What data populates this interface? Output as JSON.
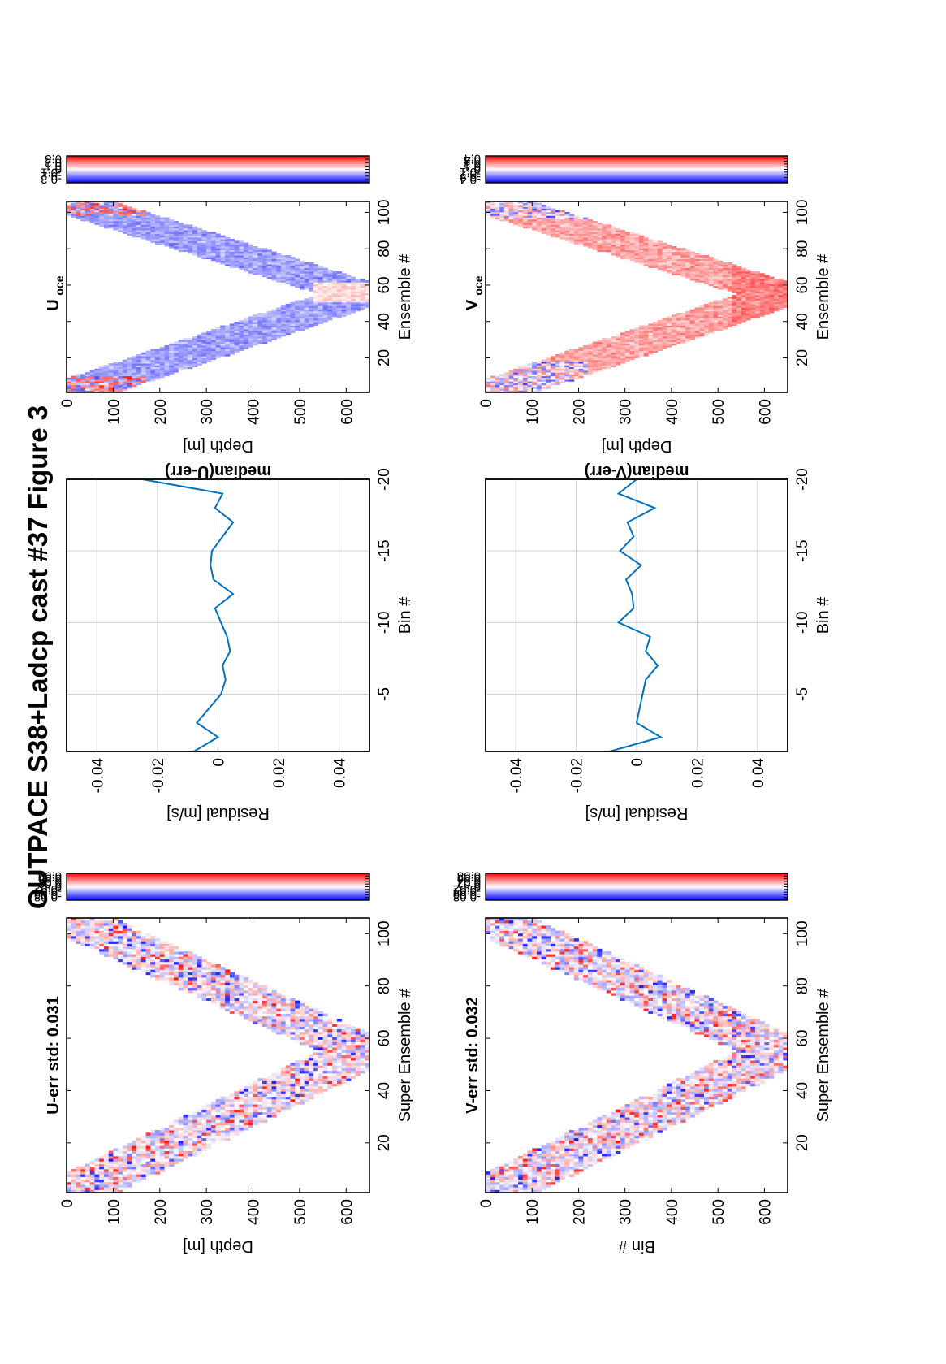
{
  "figure": {
    "title": "OUTPACE S38+Ladcp cast #37  Figure 3"
  },
  "colors": {
    "line": "#0072bd",
    "grid": "#d0d0d0",
    "frame": "#000000",
    "cmap_neg": "#0000ff",
    "cmap_zero": "#ffffff",
    "cmap_pos": "#ff0000"
  },
  "chart_data": [
    {
      "id": "u_err",
      "type": "heatmap",
      "title": "U-err std: 0.031",
      "xlabel": "Super Ensemble #",
      "ylabel": "Depth [m]",
      "xlim": [
        1,
        106
      ],
      "ylim": [
        0,
        650
      ],
      "xticks": [
        20,
        40,
        60,
        80,
        100
      ],
      "yticks": [
        0,
        100,
        200,
        300,
        400,
        500,
        600
      ],
      "pattern": "V-shaped down/up cast, bottom near ensemble 55 at ~640 m",
      "colorbar": {
        "ticks": [
          "0.08",
          "0.06",
          "0.04",
          "0.02",
          "0",
          "-0.02",
          "-0.04",
          "-0.06",
          "-0.08"
        ],
        "range": [
          -0.1,
          0.1
        ]
      },
      "seed": 11,
      "amp": 0.06
    },
    {
      "id": "u_median",
      "type": "line",
      "title": "median(U-err)",
      "xlabel": "Residual [m/s]",
      "ylabel": "Bin #",
      "xlim": [
        -0.05,
        0.05
      ],
      "ylim": [
        -20,
        -1
      ],
      "xticks": [
        "-0.04",
        "-0.02",
        "0",
        "0.02",
        "0.04"
      ],
      "yticks": [
        "-5",
        "-10",
        "-15",
        "-20"
      ],
      "grid": true,
      "series": [
        {
          "bins": [
            -1,
            -2,
            -3,
            -4,
            -5,
            -6,
            -7,
            -8,
            -9,
            -10,
            -11,
            -12,
            -13,
            -14,
            -15,
            -16,
            -17,
            -18,
            -19,
            -20
          ],
          "values": [
            -0.008,
            0.0,
            -0.007,
            -0.003,
            0.001,
            0.0025,
            0.0015,
            0.004,
            0.003,
            0.001,
            -0.001,
            0.005,
            -0.0015,
            -0.0025,
            -0.002,
            0.0015,
            0.005,
            -0.001,
            0.0015,
            -0.025
          ]
        }
      ]
    },
    {
      "id": "u_oce",
      "type": "heatmap",
      "title": "U",
      "title_sub": "oce",
      "xlabel": "Ensemble #",
      "ylabel": "Depth [m]",
      "xlim": [
        1,
        106
      ],
      "ylim": [
        0,
        650
      ],
      "xticks": [
        20,
        40,
        60,
        80,
        100
      ],
      "yticks": [
        0,
        100,
        200,
        300,
        400,
        500,
        600
      ],
      "pattern": "mostly blue (negative) with red near surface and red patch near bottom",
      "colorbar": {
        "ticks": [
          "0.3",
          "0.2",
          "0.1",
          "0",
          "-0.1",
          "-0.2",
          "-0.3"
        ],
        "range": [
          -0.4,
          0.4
        ]
      },
      "seed": 23,
      "amp": 0.05
    },
    {
      "id": "v_err",
      "type": "heatmap",
      "title": "V-err std: 0.032",
      "xlabel": "Super Ensemble #",
      "ylabel": "Bin #",
      "xlim": [
        1,
        106
      ],
      "ylim": [
        0,
        650
      ],
      "xticks": [
        20,
        40,
        60,
        80,
        100
      ],
      "yticks": [
        0,
        100,
        200,
        300,
        400,
        500,
        600
      ],
      "pattern": "V-shaped down/up cast, bottom near ensemble 55 at ~640",
      "colorbar": {
        "ticks": [
          "0.08",
          "0.06",
          "0.04",
          "0.02",
          "0",
          "-0.02",
          "-0.04",
          "-0.06",
          "-0.08"
        ],
        "range": [
          -0.1,
          0.1
        ]
      },
      "seed": 37,
      "amp": 0.06
    },
    {
      "id": "v_median",
      "type": "line",
      "title": "median(V-err)",
      "xlabel": "Residual [m/s]",
      "ylabel": "Bin #",
      "xlim": [
        -0.05,
        0.05
      ],
      "ylim": [
        -20,
        -1
      ],
      "xticks": [
        "-0.04",
        "-0.02",
        "0",
        "0.02",
        "0.04"
      ],
      "yticks": [
        "-5",
        "-10",
        "-15",
        "-20"
      ],
      "grid": true,
      "series": [
        {
          "bins": [
            -1,
            -2,
            -3,
            -4,
            -5,
            -6,
            -7,
            -8,
            -9,
            -10,
            -11,
            -12,
            -13,
            -14,
            -15,
            -16,
            -17,
            -18,
            -19,
            -20
          ],
          "values": [
            -0.009,
            0.008,
            0.0,
            0.001,
            0.002,
            0.003,
            0.007,
            0.003,
            0.0045,
            -0.006,
            -0.001,
            -0.0015,
            -0.0035,
            0.0015,
            -0.0055,
            -0.001,
            -0.003,
            0.006,
            -0.006,
            0.0
          ]
        }
      ]
    },
    {
      "id": "v_oce",
      "type": "heatmap",
      "title": "V",
      "title_sub": "oce",
      "xlabel": "Ensemble #",
      "ylabel": "Depth [m]",
      "xlim": [
        1,
        106
      ],
      "ylim": [
        0,
        650
      ],
      "xticks": [
        20,
        40,
        60,
        80,
        100
      ],
      "yticks": [
        0,
        100,
        200,
        300,
        400,
        500,
        600
      ],
      "pattern": "mostly red (positive) with blue near the surface",
      "colorbar": {
        "ticks": [
          "0.4",
          "0.3",
          "0.2",
          "0.1",
          "0",
          "-0.1",
          "-0.2",
          "-0.3",
          "-0.4"
        ],
        "range": [
          -0.5,
          0.5
        ]
      },
      "seed": 51,
      "amp": 0.05
    }
  ]
}
